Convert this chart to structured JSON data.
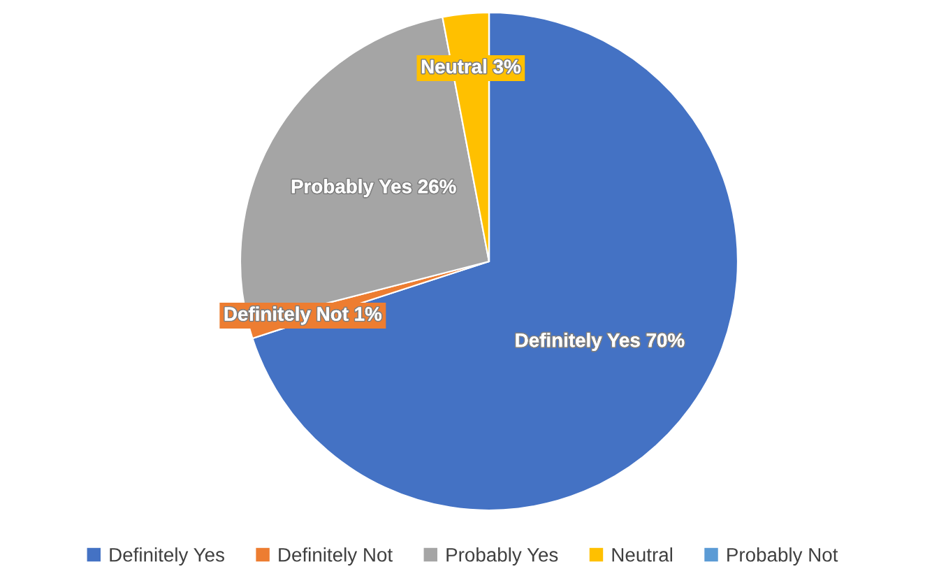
{
  "chart_data": {
    "type": "pie",
    "categories": [
      "Definitely Yes",
      "Definitely Not",
      "Probably Yes",
      "Neutral",
      "Probably Not"
    ],
    "values": [
      70,
      1,
      26,
      3,
      0
    ],
    "colors": [
      "#4472c4",
      "#ed7d31",
      "#a5a5a5",
      "#ffc000",
      "#5b9bd5"
    ],
    "value_labels": [
      "Definitely Yes 70%",
      "Definitely Not 1%",
      "Probably Yes 26%",
      "Neutral 3%",
      null
    ],
    "legend": "bottom"
  }
}
